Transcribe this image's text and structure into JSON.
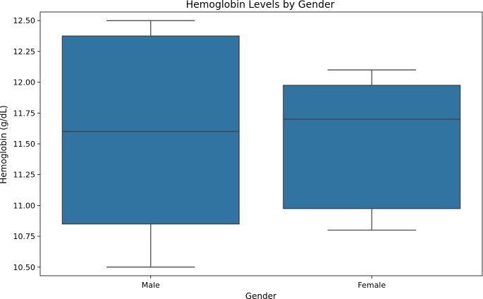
{
  "chart_data": {
    "type": "box",
    "title": "Hemoglobin Levels by Gender",
    "xlabel": "Gender",
    "ylabel": "Hemoglobin (g/dL)",
    "categories": [
      "Male",
      "Female"
    ],
    "boxes": [
      {
        "category": "Male",
        "whisker_low": 10.5,
        "q1": 10.85,
        "median": 11.6,
        "q3": 12.375,
        "whisker_high": 12.5
      },
      {
        "category": "Female",
        "whisker_low": 10.8,
        "q1": 10.975,
        "median": 11.7,
        "q3": 11.975,
        "whisker_high": 12.1
      }
    ],
    "ylim": [
      10.43,
      12.57
    ],
    "yticks": [
      10.5,
      10.75,
      11.0,
      11.25,
      11.5,
      11.75,
      12.0,
      12.25,
      12.5
    ],
    "ytick_labels": [
      "10.50",
      "10.75",
      "11.00",
      "11.25",
      "11.50",
      "11.75",
      "12.00",
      "12.25",
      "12.50"
    ],
    "grid": false,
    "legend": "none",
    "box_color": "#3274a1",
    "line_color": "#3d3d3d"
  }
}
